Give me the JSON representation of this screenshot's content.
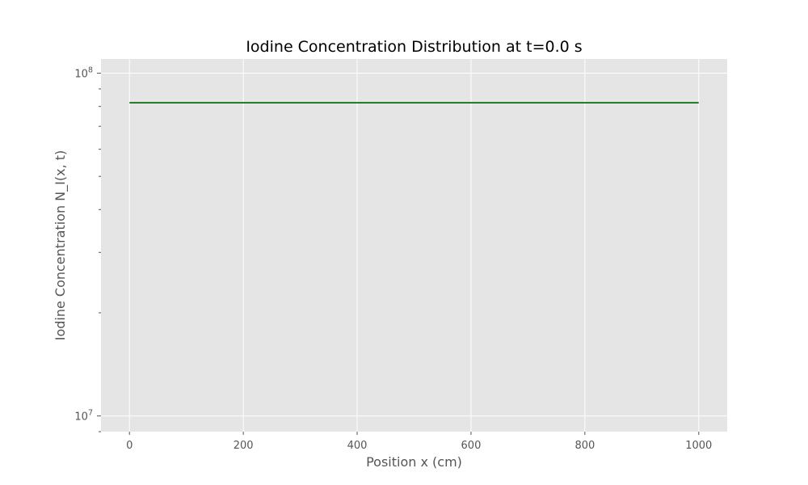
{
  "chart_data": {
    "type": "line",
    "title": "Iodine Concentration Distribution at t=0.0 s",
    "xlabel": "Position x (cm)",
    "ylabel": "Iodine Concentration N_I(x, t)",
    "xlim": [
      -50,
      1050
    ],
    "ylim": [
      9000000,
      110000000
    ],
    "y_scale": "log",
    "grid": true,
    "x_ticks": [
      0,
      200,
      400,
      600,
      800,
      1000
    ],
    "x_tick_labels": [
      "0",
      "200",
      "400",
      "600",
      "800",
      "1000"
    ],
    "y_major_ticks": [
      10000000,
      100000000
    ],
    "y_major_labels": [
      {
        "base": "10",
        "exp": "7"
      },
      {
        "base": "10",
        "exp": "8"
      }
    ],
    "y_minor_ticks": [
      9000000,
      20000000,
      30000000,
      40000000,
      50000000,
      60000000,
      70000000,
      80000000,
      90000000
    ],
    "series": [
      {
        "color": "#0a6b0a",
        "x": [
          0,
          1000
        ],
        "y": [
          82000000,
          82000000
        ]
      }
    ]
  },
  "colors": {
    "plot_background": "#e5e5e5",
    "grid": "#ffffff",
    "tick_text": "#555555",
    "title_text": "#000000"
  }
}
